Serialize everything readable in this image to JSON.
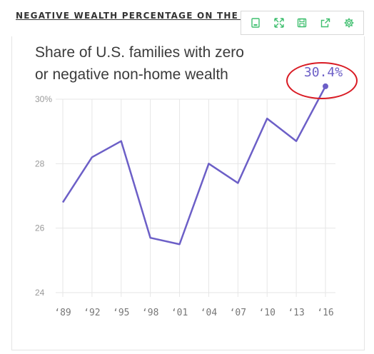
{
  "header": {
    "title": "NEGATIVE WEALTH PERCENTAGE ON THE RISE"
  },
  "toolbar": {
    "buttons": [
      {
        "icon": "print-icon"
      },
      {
        "icon": "fullscreen-icon"
      },
      {
        "icon": "save-icon"
      },
      {
        "icon": "share-icon"
      },
      {
        "icon": "settings-icon"
      }
    ],
    "color": "#3fbf6f"
  },
  "chart_data": {
    "type": "line",
    "title": "Share of U.S. families with zero or negative non-home wealth",
    "title_lines": [
      "Share of U.S. families with zero",
      "or negative non-home wealth"
    ],
    "categories": [
      "‘89",
      "‘92",
      "‘95",
      "‘98",
      "‘01",
      "‘04",
      "‘07",
      "‘10",
      "‘13",
      "‘16"
    ],
    "series": [
      {
        "values": [
          26.8,
          28.2,
          28.7,
          25.7,
          25.5,
          28.0,
          27.4,
          29.4,
          28.7,
          30.4
        ],
        "color": "#6c5fc7"
      }
    ],
    "ylim": [
      24,
      30
    ],
    "yticks": [
      24,
      26,
      28,
      30
    ],
    "ytick_labels": [
      "24",
      "26",
      "28",
      "30%"
    ],
    "grid": true,
    "annotation": {
      "text": "30.4%",
      "category": "‘16",
      "value": 30.4,
      "highlight_color": "#d91b24"
    }
  }
}
